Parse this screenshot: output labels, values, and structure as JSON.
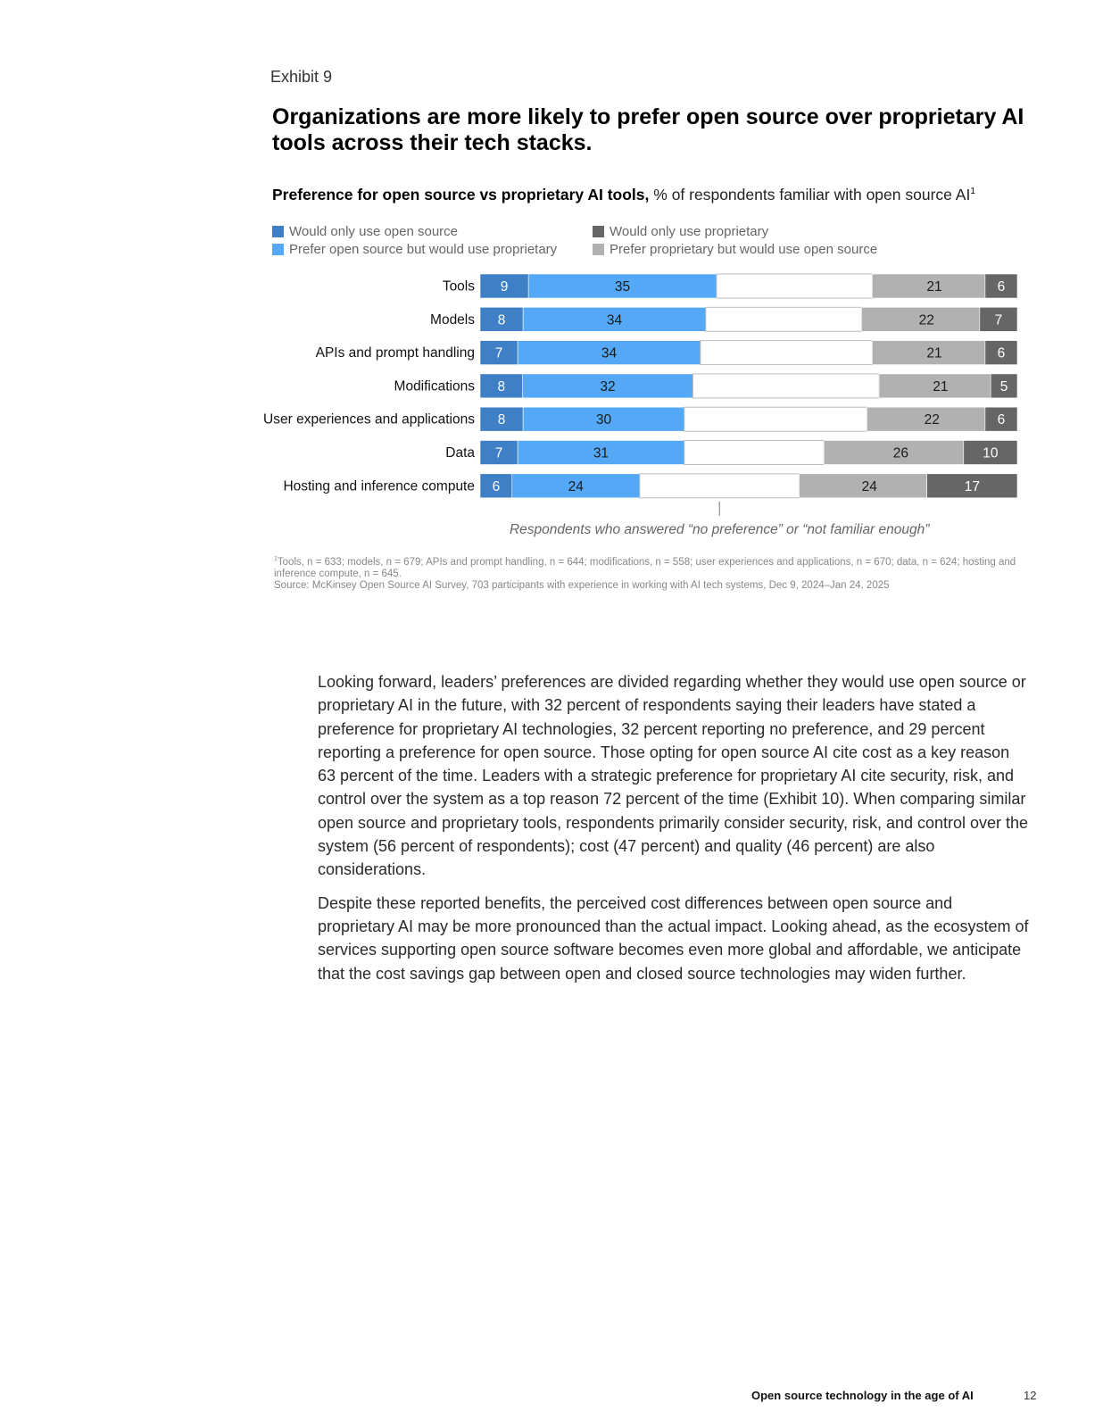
{
  "exhibit_label": "Exhibit 9",
  "headline": "Organizations are more likely to prefer open source over proprietary AI tools across their tech stacks.",
  "subtitle": {
    "bold": "Preference for open source vs proprietary AI tools,",
    "rest": " % of respondents familiar with open source AI",
    "sup": "1"
  },
  "colors": {
    "only_open": "#3f7fc6",
    "prefer_open": "#55a8f5",
    "no_pref": "#ffffff",
    "prefer_prop": "#b1b1b1",
    "only_prop": "#666666"
  },
  "legend": {
    "only_open": "Would only use open source",
    "prefer_open": "Prefer open source but would use proprietary",
    "only_prop": "Would only use proprietary",
    "prefer_prop": "Prefer proprietary but would use open source"
  },
  "chart_data": {
    "type": "bar",
    "orientation": "horizontal-stacked",
    "categories": [
      "Tools",
      "Models",
      "APIs and prompt handling",
      "Modifications",
      "User experiences and applications",
      "Data",
      "Hosting and inference compute"
    ],
    "series": [
      {
        "name": "Would only use open source",
        "key": "only_open",
        "values": [
          9,
          8,
          7,
          8,
          8,
          7,
          6
        ]
      },
      {
        "name": "Prefer open source but would use proprietary",
        "key": "prefer_open",
        "values": [
          35,
          34,
          34,
          32,
          30,
          31,
          24
        ]
      },
      {
        "key": "no_pref",
        "values": [
          29,
          29,
          32,
          35,
          34,
          26,
          30
        ]
      },
      {
        "name": "Prefer proprietary but would use open source",
        "key": "prefer_prop",
        "values": [
          21,
          22,
          21,
          21,
          22,
          26,
          24
        ]
      },
      {
        "name": "Would only use proprietary",
        "key": "only_prop",
        "values": [
          6,
          7,
          6,
          5,
          6,
          10,
          17
        ]
      }
    ],
    "annotation": "Respondents who answered “no preference” or “not familiar enough”",
    "xlim": [
      0,
      100
    ],
    "legend_position": "top-left"
  },
  "footnote": {
    "sup": "1",
    "line1": "Tools, n = 633; models, n = 679; APIs and prompt handling, n = 644; modifications, n = 558; user experiences and applications, n = 670; data, n = 624; hosting and inference compute, n = 645.",
    "source": "Source: McKinsey Open Source AI Survey, 703 participants with experience in working with AI tech systems, Dec 9, 2024–Jan 24, 2025"
  },
  "body": {
    "paragraph1": "Looking forward, leaders’ preferences are divided regarding whether they would use open source or proprietary AI in the future, with 32 percent of respondents saying their leaders have stated a preference for proprietary AI technologies, 32 percent reporting no preference, and 29 percent reporting a preference for open source. Those opting for open source AI cite cost as a key reason 63 percent of the time. Leaders with a strategic preference for proprietary AI cite security, risk, and control over the system as a top reason 72 percent of the time (Exhibit 10). When comparing similar open source and proprietary tools, respondents primarily consider security, risk, and control over the system (56 percent of respondents); cost (47 percent) and quality (46 percent) are also considerations.",
    "paragraph2": "Despite these reported benefits, the perceived cost differences between open source and proprietary AI may be more pronounced than the actual impact. Looking ahead, as the ecosystem of services supporting open source software becomes even more global and affordable, we anticipate that the cost savings gap between open and closed source technologies may widen further."
  },
  "footer": {
    "title": "Open source technology in the age of AI",
    "page_number": "12"
  }
}
